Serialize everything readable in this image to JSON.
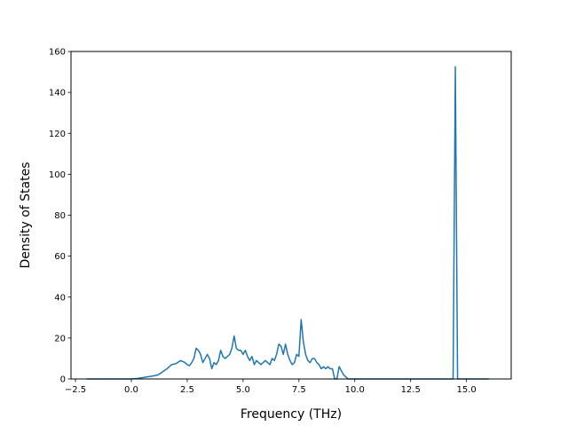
{
  "chart_data": {
    "type": "line",
    "title": "",
    "xlabel": "Frequency (THz)",
    "ylabel": "Density of States",
    "xlim": [
      -2.7,
      17.0
    ],
    "ylim": [
      0,
      160
    ],
    "xticks": [
      -2.5,
      0.0,
      2.5,
      5.0,
      7.5,
      10.0,
      12.5,
      15.0
    ],
    "xtick_labels": [
      "−2.5",
      "0.0",
      "2.5",
      "5.0",
      "7.5",
      "10.0",
      "12.5",
      "15.0"
    ],
    "yticks": [
      0,
      20,
      40,
      60,
      80,
      100,
      120,
      140,
      160
    ],
    "ytick_labels": [
      "0",
      "20",
      "40",
      "60",
      "80",
      "100",
      "120",
      "140",
      "160"
    ],
    "grid": false,
    "legend": "none",
    "color": "#1f77b4",
    "series": [
      {
        "x": [
          -2.0,
          -1.0,
          0.0,
          0.3,
          0.6,
          1.0,
          1.2,
          1.4,
          1.6,
          1.8,
          2.0,
          2.2,
          2.4,
          2.5,
          2.6,
          2.7,
          2.8,
          2.9,
          3.0,
          3.1,
          3.2,
          3.3,
          3.4,
          3.5,
          3.6,
          3.7,
          3.8,
          3.9,
          4.0,
          4.1,
          4.2,
          4.4,
          4.5,
          4.6,
          4.7,
          4.8,
          4.9,
          5.0,
          5.1,
          5.2,
          5.3,
          5.4,
          5.5,
          5.6,
          5.7,
          5.8,
          6.0,
          6.1,
          6.2,
          6.3,
          6.4,
          6.5,
          6.6,
          6.7,
          6.8,
          6.9,
          7.0,
          7.1,
          7.2,
          7.3,
          7.4,
          7.5,
          7.6,
          7.7,
          7.8,
          7.9,
          8.0,
          8.1,
          8.2,
          8.3,
          8.4,
          8.5,
          8.6,
          8.7,
          8.8,
          8.9,
          9.0,
          9.1,
          9.2,
          9.3,
          9.4,
          9.5,
          9.6,
          9.7,
          9.8,
          9.9,
          10.0,
          11.0,
          12.0,
          13.0,
          14.0,
          14.3,
          14.4,
          14.5,
          14.6,
          15.0,
          16.0
        ],
        "y": [
          0,
          0,
          0,
          0.3,
          0.8,
          1.5,
          2,
          3.5,
          5,
          7,
          7.5,
          9,
          8,
          7,
          6.5,
          8,
          10,
          15,
          14,
          12,
          8,
          10,
          12,
          10,
          5,
          8,
          7,
          9,
          14,
          11,
          10,
          12,
          15,
          21,
          15,
          14,
          14,
          12,
          14,
          11,
          9,
          11,
          7,
          9,
          8,
          7,
          9,
          8,
          7,
          10,
          9,
          12,
          17,
          16,
          12,
          17,
          12,
          9,
          7,
          8,
          12,
          11,
          29,
          18,
          12,
          9,
          8,
          10,
          10,
          8,
          7,
          5,
          6,
          5,
          6,
          5,
          5,
          0,
          0,
          6,
          4,
          2,
          1,
          0,
          0,
          0,
          0,
          0,
          0,
          0,
          0,
          0,
          0,
          152.5,
          0,
          0,
          0
        ]
      }
    ]
  }
}
